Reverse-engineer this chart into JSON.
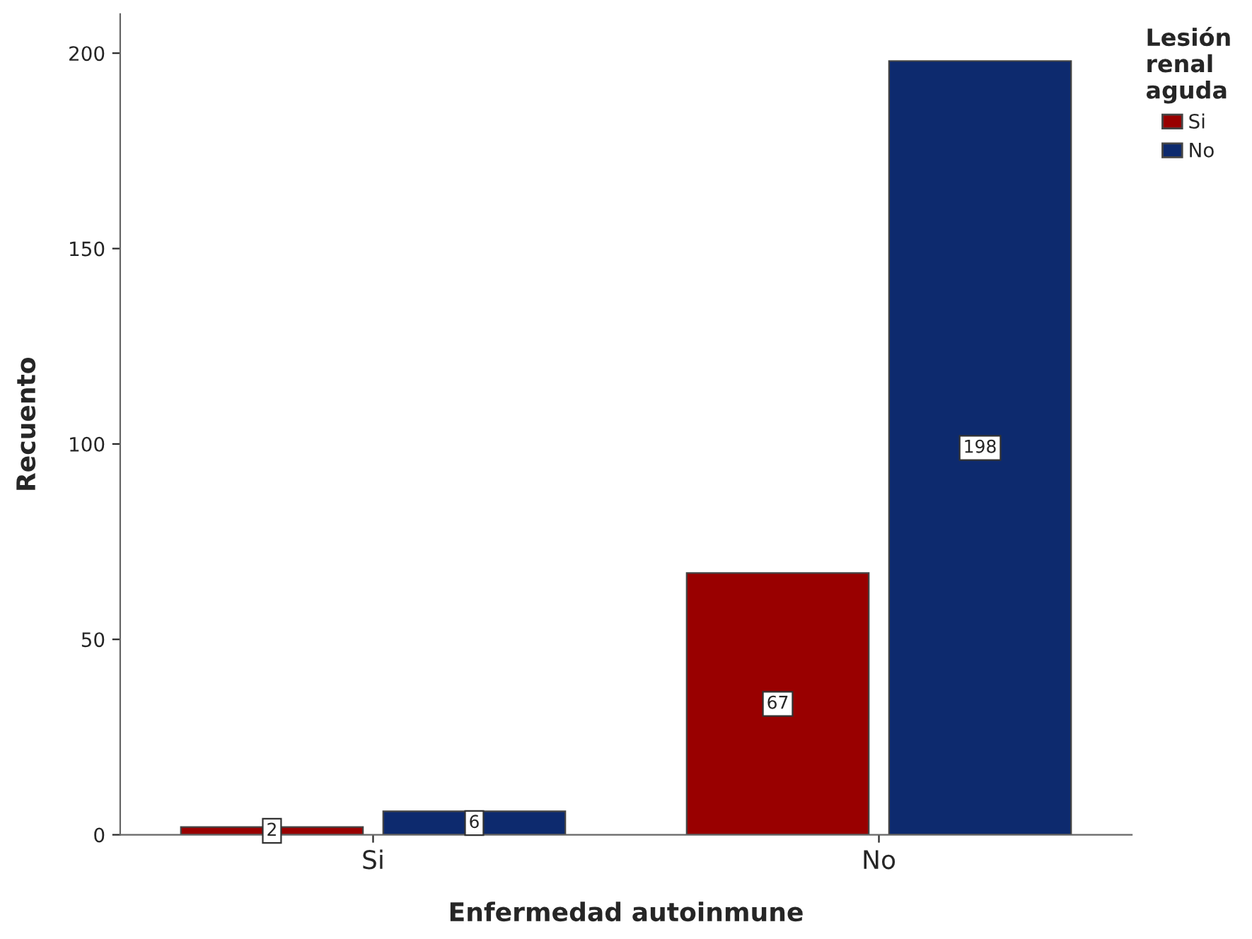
{
  "chart_data": {
    "type": "bar",
    "xlabel": "Enfermedad autoinmune",
    "ylabel": "Recuento",
    "legend_title": "Lesión renal aguda",
    "categories": [
      "Si",
      "No"
    ],
    "series": [
      {
        "name": "Si",
        "color": "#990000",
        "values": [
          2,
          67
        ]
      },
      {
        "name": "No",
        "color": "#0d2a6e",
        "values": [
          6,
          198
        ]
      }
    ],
    "ylim": [
      0,
      210
    ],
    "yticks": [
      0,
      50,
      100,
      150,
      200
    ],
    "grid": false,
    "legend": "top right",
    "data_labels": true
  }
}
